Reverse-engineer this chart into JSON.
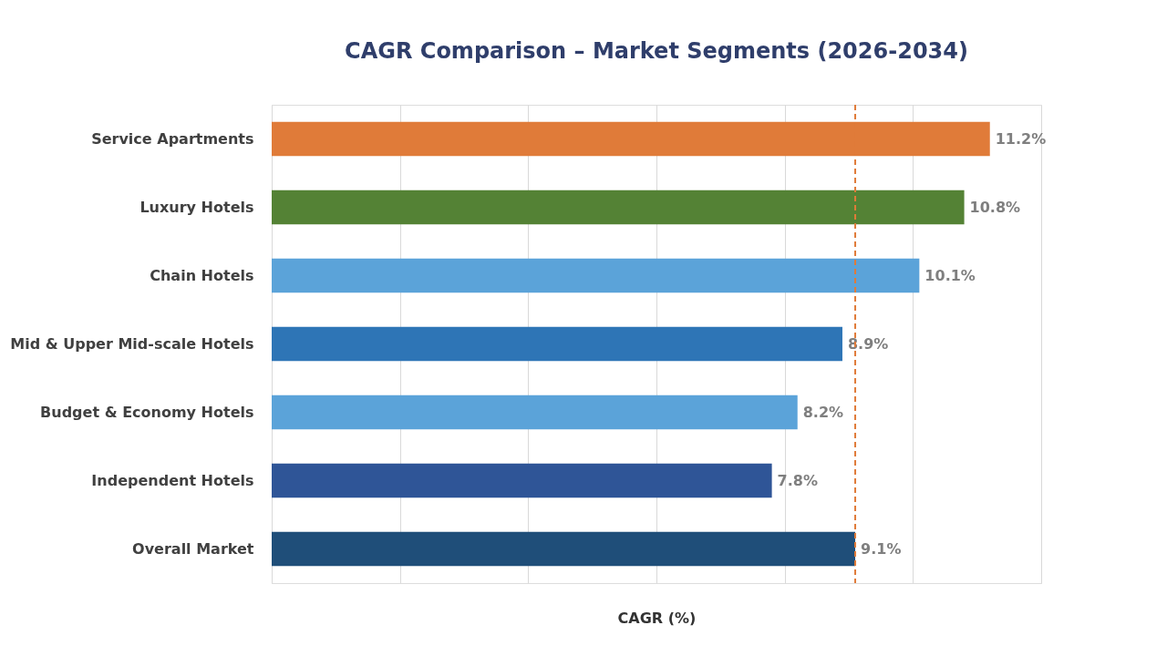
{
  "chart_data": {
    "type": "bar",
    "orientation": "horizontal",
    "title": "CAGR Comparison – Market Segments (2026-2034)",
    "xlabel": "CAGR (%)",
    "categories": [
      "Service Apartments",
      "Luxury Hotels",
      "Chain Hotels",
      "Mid & Upper Mid-scale Hotels",
      "Budget & Economy Hotels",
      "Independent Hotels",
      "Overall Market"
    ],
    "values": [
      11.2,
      10.8,
      10.1,
      8.9,
      8.2,
      7.8,
      9.1
    ],
    "value_labels": [
      "11.2%",
      "10.8%",
      "10.1%",
      "8.9%",
      "8.2%",
      "7.8%",
      "9.1%"
    ],
    "colors": [
      "#e07b39",
      "#548235",
      "#5ba3d9",
      "#2e75b6",
      "#5ba3d9",
      "#2f5597",
      "#1f4e79"
    ],
    "xlim": [
      0,
      12
    ],
    "xticks": [
      {
        "value": 0,
        "label": null
      },
      {
        "value": 2,
        "label": null
      },
      {
        "value": 4,
        "label": null
      },
      {
        "value": 6,
        "label": null
      },
      {
        "value": 8,
        "label": null
      },
      {
        "value": 10,
        "label": null
      },
      {
        "value": 12,
        "label": null
      }
    ],
    "tick_labels": "y",
    "grid": "x",
    "legend": false,
    "ref_lines": [
      {
        "axis": "x",
        "value": 9.1,
        "color": "#e07b39",
        "line_style": "dashed"
      }
    ]
  }
}
